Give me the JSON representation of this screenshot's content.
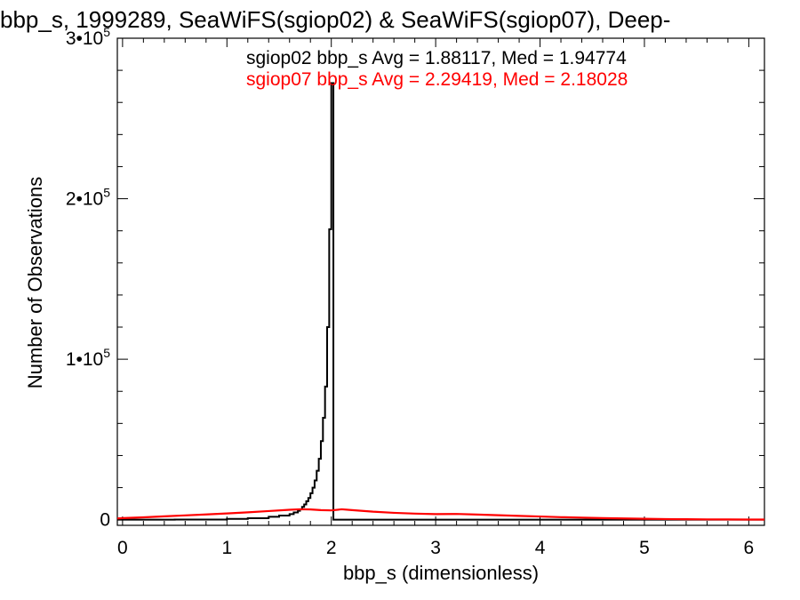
{
  "chart_data": {
    "type": "line",
    "title": "bbp_s, 1999289, SeaWiFS(sgiop02) & SeaWiFS(sgiop07), Deep-",
    "xlabel": "bbp_s (dimensionless)",
    "ylabel": "Number of Observations",
    "xlim": [
      -0.05,
      6.15
    ],
    "ylim": [
      -3500,
      300000
    ],
    "xticks": [
      0,
      1,
      2,
      3,
      4,
      5,
      6
    ],
    "xtick_labels": [
      "0",
      "1",
      "2",
      "3",
      "4",
      "5",
      "6"
    ],
    "yticks": [
      0,
      100000,
      200000,
      300000
    ],
    "ytick_labels": [
      {
        "base": "0",
        "exp": ""
      },
      {
        "base": "1•10",
        "exp": "5"
      },
      {
        "base": "2•10",
        "exp": "5"
      },
      {
        "base": "3•10",
        "exp": "5"
      }
    ],
    "grid": false,
    "annotations": [
      {
        "text": "sgiop02 bbp_s Avg = 1.88117, Med = 1.94774",
        "color": "#000000"
      },
      {
        "text": "sgiop07 bbp_s Avg = 2.29419, Med = 2.18028",
        "color": "#ff0000"
      }
    ],
    "series": [
      {
        "color": "#000000",
        "style": "step",
        "x": [
          -0.05,
          0.0,
          0.5,
          1.0,
          1.2,
          1.4,
          1.5,
          1.6,
          1.64,
          1.68,
          1.7,
          1.72,
          1.74,
          1.76,
          1.78,
          1.8,
          1.82,
          1.84,
          1.86,
          1.88,
          1.9,
          1.92,
          1.94,
          1.96,
          1.98,
          2.0,
          2.02,
          2.04,
          2.1,
          3.0,
          4.0,
          5.0,
          6.15
        ],
        "y": [
          0,
          0,
          100,
          500,
          900,
          1800,
          2600,
          3500,
          4500,
          5600,
          6500,
          8000,
          9500,
          11500,
          13500,
          16500,
          20000,
          24500,
          30500,
          38000,
          49000,
          63500,
          83000,
          120000,
          181000,
          272000,
          0,
          0,
          0,
          0,
          0,
          0,
          0
        ]
      },
      {
        "color": "#ff0000",
        "style": "line",
        "x": [
          -0.05,
          0.0,
          0.2,
          0.4,
          0.6,
          0.8,
          1.0,
          1.2,
          1.4,
          1.6,
          1.7,
          1.8,
          1.9,
          2.0,
          2.1,
          2.2,
          2.4,
          2.6,
          2.8,
          3.0,
          3.2,
          3.4,
          3.6,
          3.8,
          4.0,
          4.2,
          4.4,
          4.6,
          4.8,
          5.0,
          5.2,
          5.4,
          5.6,
          5.8,
          6.0,
          6.15
        ],
        "y": [
          800,
          1000,
          1500,
          2100,
          2700,
          3300,
          3900,
          4600,
          5400,
          6200,
          6500,
          6400,
          6000,
          5800,
          6500,
          6000,
          5000,
          4300,
          3800,
          3500,
          3600,
          3200,
          2800,
          2400,
          2000,
          1600,
          1300,
          1000,
          800,
          600,
          400,
          300,
          200,
          150,
          100,
          80
        ]
      }
    ]
  }
}
